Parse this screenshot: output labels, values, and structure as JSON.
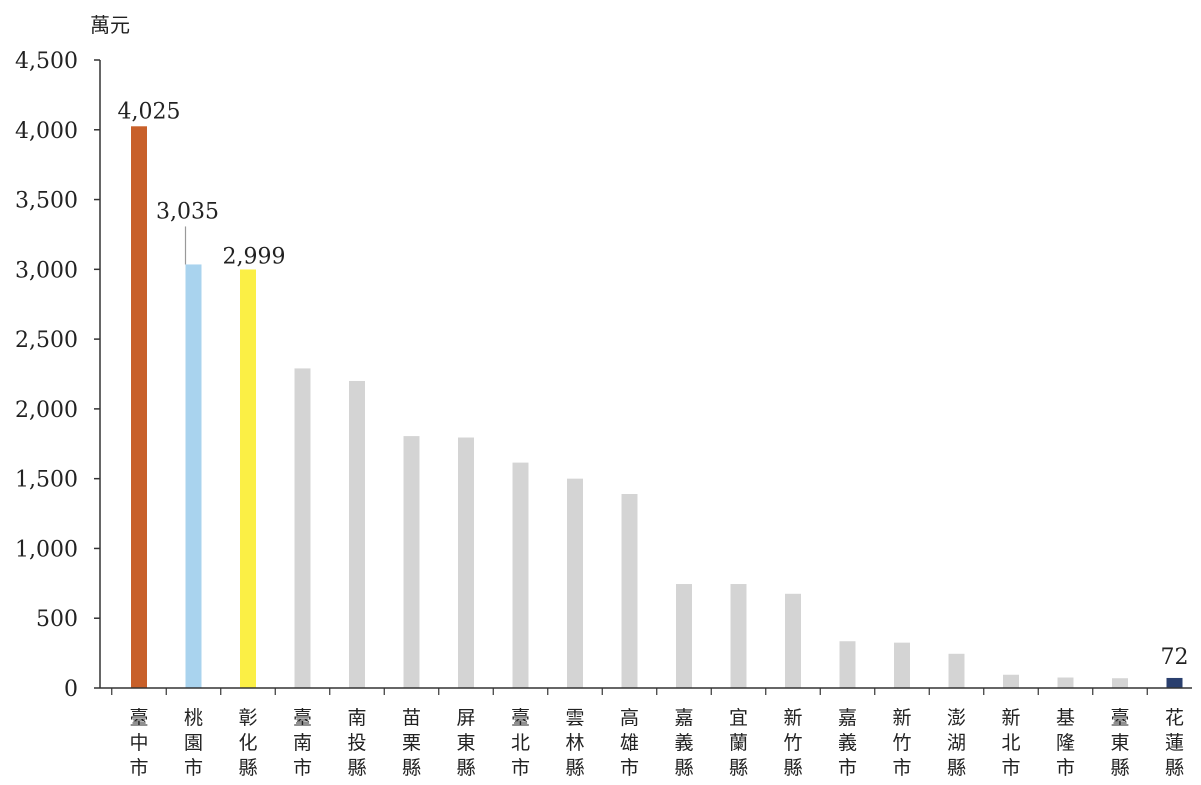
{
  "chart_data": {
    "type": "bar",
    "unit_label": "萬元",
    "categories": [
      "臺中市",
      "桃園市",
      "彰化縣",
      "臺南市",
      "南投縣",
      "苗栗縣",
      "屏東縣",
      "臺北市",
      "雲林縣",
      "高雄市",
      "嘉義縣",
      "宜蘭縣",
      "新竹縣",
      "嘉義市",
      "新竹市",
      "澎湖縣",
      "新北市",
      "基隆市",
      "臺東縣",
      "花蓮縣"
    ],
    "values": [
      4025,
      3035,
      2999,
      2290,
      2200,
      1805,
      1795,
      1615,
      1500,
      1390,
      745,
      745,
      675,
      335,
      325,
      245,
      95,
      75,
      70,
      72
    ],
    "colors": [
      "#c8602a",
      "#a9d3ee",
      "#fbef45",
      "#d4d4d4",
      "#d4d4d4",
      "#d4d4d4",
      "#d4d4d4",
      "#d4d4d4",
      "#d4d4d4",
      "#d4d4d4",
      "#d4d4d4",
      "#d4d4d4",
      "#d4d4d4",
      "#d4d4d4",
      "#d4d4d4",
      "#d4d4d4",
      "#d4d4d4",
      "#d4d4d4",
      "#d4d4d4",
      "#2a3f6e"
    ],
    "data_labels": [
      {
        "index": 0,
        "text": "4,025"
      },
      {
        "index": 1,
        "text": "3,035"
      },
      {
        "index": 2,
        "text": "2,999"
      },
      {
        "index": 19,
        "text": "72"
      }
    ],
    "yticks": [
      0,
      500,
      1000,
      1500,
      2000,
      2500,
      3000,
      3500,
      4000,
      4500
    ],
    "ytick_labels": [
      "0",
      "500",
      "1,000",
      "1,500",
      "2,000",
      "2,500",
      "3,000",
      "3,500",
      "4,000",
      "4,500"
    ],
    "ylim": [
      0,
      4500
    ],
    "grid": false,
    "legend": "none"
  }
}
